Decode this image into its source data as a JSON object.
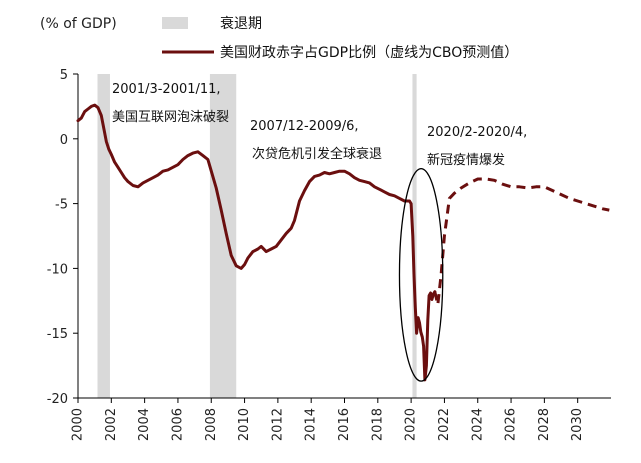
{
  "chart_data": {
    "type": "line",
    "ylabel": "(% of GDP)",
    "ylim": [
      -20,
      5
    ],
    "yticks": [
      5,
      0,
      -5,
      -10,
      -15,
      -20
    ],
    "xlim": [
      2000,
      2032
    ],
    "xticks": [
      "2000",
      "2002",
      "2004",
      "2006",
      "2008",
      "2010",
      "2012",
      "2014",
      "2016",
      "2018",
      "2020",
      "2022",
      "2024",
      "2026",
      "2028",
      "2030"
    ],
    "colors": {
      "series": "#6b0f0f",
      "recession": "#d9d9d9",
      "ellipse": "#000000"
    },
    "legend": {
      "placement": "top",
      "recession_label": "衰退期",
      "series_label": "美国财政赤字占GDP比例（虚线为CBO预测值）"
    },
    "recessions": [
      {
        "start": 2001.17,
        "end": 2001.92
      },
      {
        "start": 2007.92,
        "end": 2009.5
      },
      {
        "start": 2020.08,
        "end": 2020.33
      }
    ],
    "annotations": [
      {
        "lines": [
          "2001/3-2001/11,",
          "美国互联网泡沫破裂"
        ]
      },
      {
        "lines": [
          "2007/12-2009/6,",
          "次贷危机引发全球衰退"
        ]
      },
      {
        "lines": [
          "2020/2-2020/4,",
          "新冠疫情爆发"
        ]
      }
    ],
    "highlight_ellipse": {
      "center_x": 2020.6,
      "center_y": -10.5,
      "radius_x": 1.3,
      "radius_y": 8.2
    },
    "series": [
      {
        "style": "solid",
        "x": [
          2000.0,
          2000.2,
          2000.4,
          2000.6,
          2000.8,
          2001.0,
          2001.2,
          2001.4,
          2001.55,
          2001.7,
          2001.85,
          2002.0,
          2002.2,
          2002.4,
          2002.6,
          2002.8,
          2003.0,
          2003.3,
          2003.6,
          2003.9,
          2004.2,
          2004.5,
          2004.8,
          2005.1,
          2005.4,
          2005.7,
          2006.0,
          2006.3,
          2006.6,
          2006.9,
          2007.2,
          2007.5,
          2007.8,
          2008.0,
          2008.3,
          2008.6,
          2008.9,
          2009.2,
          2009.5,
          2009.8,
          2010.0,
          2010.2,
          2010.5,
          2010.8,
          2011.0,
          2011.3,
          2011.6,
          2011.9,
          2012.2,
          2012.5,
          2012.8,
          2013.0,
          2013.3,
          2013.6,
          2013.9,
          2014.2,
          2014.5,
          2014.8,
          2015.1,
          2015.4,
          2015.7,
          2016.0,
          2016.3,
          2016.6,
          2016.9,
          2017.2,
          2017.5,
          2017.8,
          2018.1,
          2018.4,
          2018.7,
          2019.0,
          2019.3,
          2019.6,
          2019.9,
          2020.0,
          2020.1,
          2020.17,
          2020.25,
          2020.33,
          2020.42,
          2020.5,
          2020.58,
          2020.67,
          2020.75,
          2020.83,
          2020.92,
          2021.0,
          2021.08,
          2021.17,
          2021.25,
          2021.33,
          2021.42
        ],
        "y": [
          1.4,
          1.6,
          2.1,
          2.3,
          2.5,
          2.6,
          2.4,
          1.8,
          0.8,
          -0.2,
          -0.8,
          -1.2,
          -1.8,
          -2.2,
          -2.6,
          -3.0,
          -3.3,
          -3.6,
          -3.7,
          -3.4,
          -3.2,
          -3.0,
          -2.8,
          -2.5,
          -2.4,
          -2.2,
          -2.0,
          -1.6,
          -1.3,
          -1.1,
          -1.0,
          -1.3,
          -1.6,
          -2.5,
          -3.8,
          -5.5,
          -7.3,
          -9.0,
          -9.8,
          -10.0,
          -9.7,
          -9.2,
          -8.7,
          -8.5,
          -8.3,
          -8.7,
          -8.5,
          -8.3,
          -7.8,
          -7.3,
          -6.9,
          -6.3,
          -4.8,
          -4.0,
          -3.3,
          -2.9,
          -2.8,
          -2.6,
          -2.7,
          -2.6,
          -2.5,
          -2.5,
          -2.7,
          -3.0,
          -3.2,
          -3.3,
          -3.4,
          -3.7,
          -3.9,
          -4.1,
          -4.3,
          -4.4,
          -4.6,
          -4.8,
          -4.8,
          -5.0,
          -7.5,
          -10.5,
          -13.0,
          -15.0,
          -13.8,
          -14.2,
          -14.9,
          -15.3,
          -16.0,
          -18.6,
          -17.5,
          -14.0,
          -12.1,
          -11.9,
          -12.4,
          -12.0,
          -11.8
        ]
      },
      {
        "style": "dashed",
        "x": [
          2021.42,
          2021.6,
          2021.8,
          2022.0,
          2022.3,
          2022.6,
          2023.0,
          2023.5,
          2024.0,
          2024.5,
          2025.0,
          2025.5,
          2026.0,
          2026.5,
          2027.0,
          2027.5,
          2028.0,
          2028.5,
          2029.0,
          2029.5,
          2030.0,
          2030.5,
          2031.0,
          2031.5,
          2031.9
        ],
        "y": [
          -11.8,
          -12.8,
          -10.5,
          -7.5,
          -4.6,
          -4.2,
          -3.8,
          -3.4,
          -3.1,
          -3.1,
          -3.2,
          -3.5,
          -3.7,
          -3.7,
          -3.8,
          -3.7,
          -3.7,
          -4.0,
          -4.3,
          -4.6,
          -4.8,
          -5.0,
          -5.2,
          -5.4,
          -5.5
        ]
      }
    ]
  }
}
